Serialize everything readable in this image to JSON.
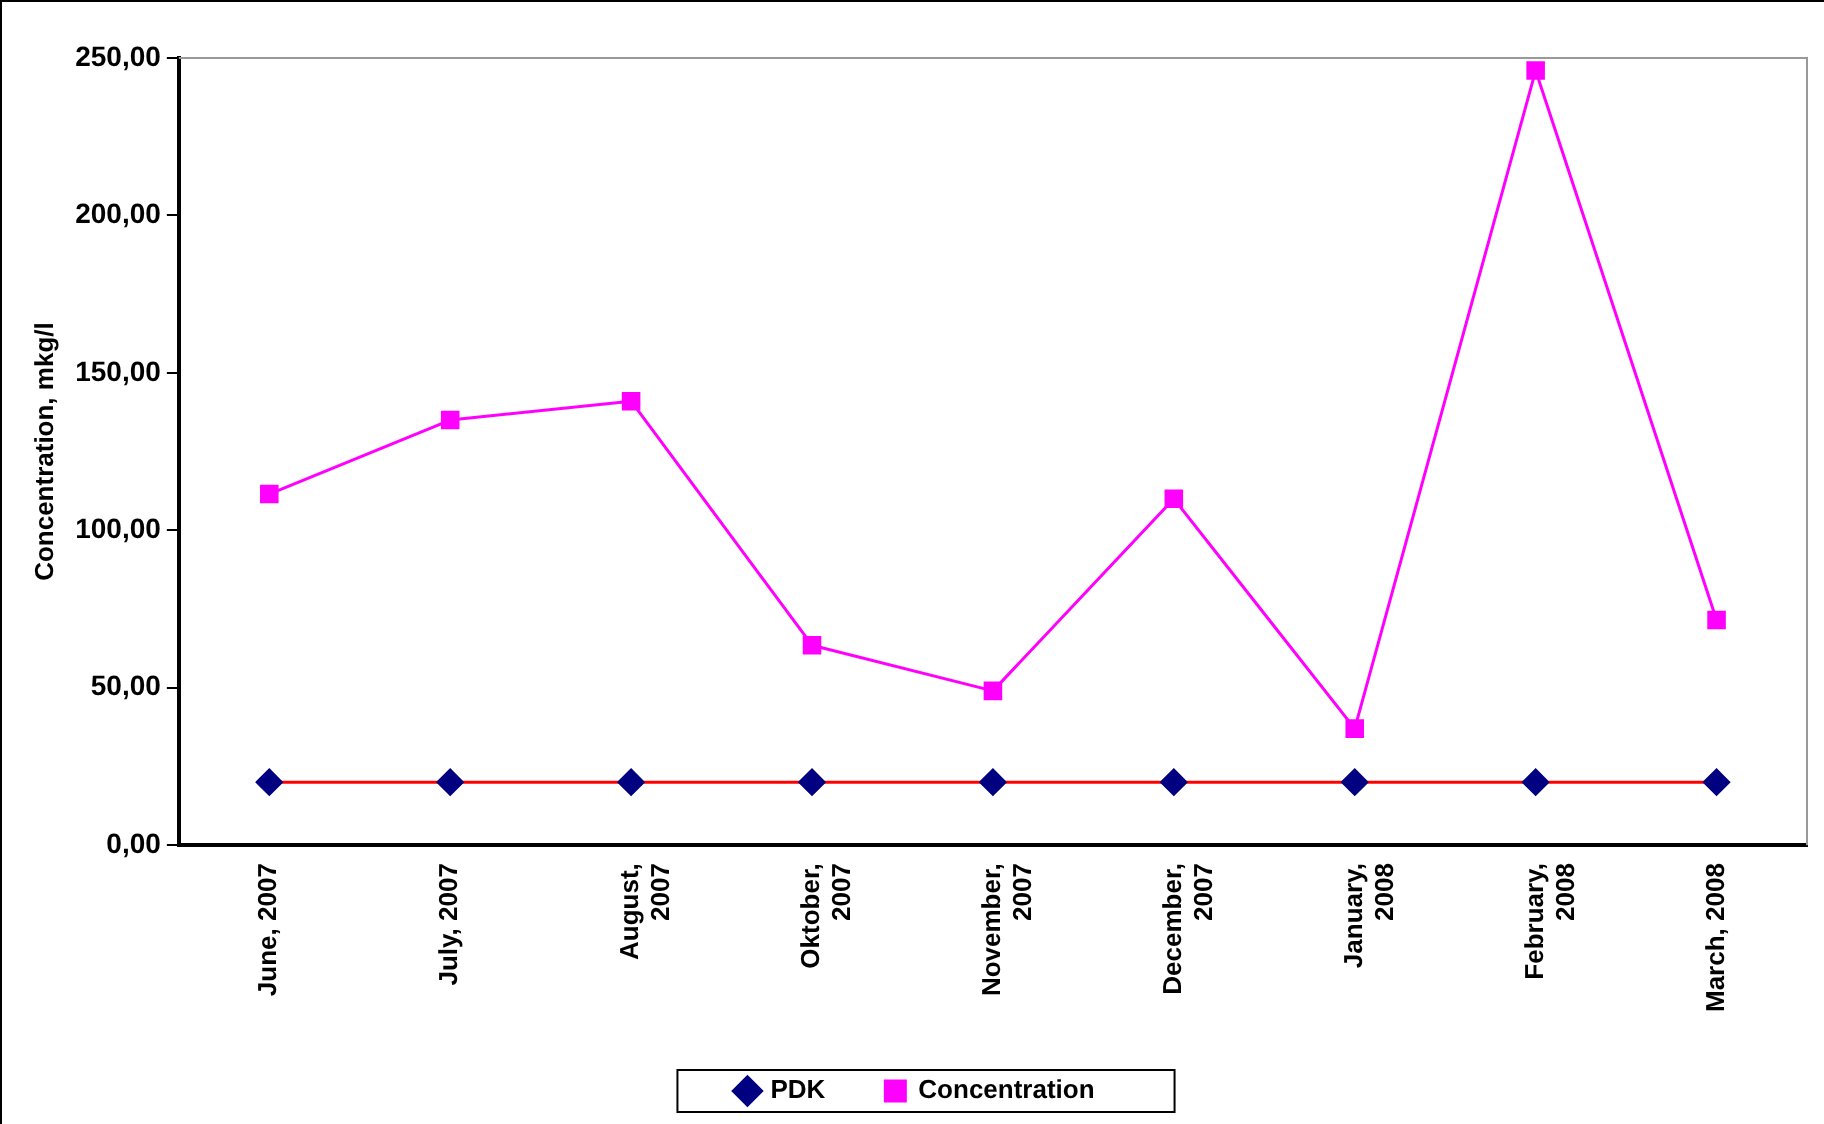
{
  "chart_data": {
    "type": "line",
    "ylabel": "Concentration, mkg/l",
    "categories": [
      "June, 2007",
      "July, 2007",
      "August, 2007",
      "Oktober, 2007",
      "November, 2007",
      "December, 2007",
      "January, 2008",
      "February, 2008",
      "March, 2008"
    ],
    "series": [
      {
        "name": "PDK",
        "color": "#000080",
        "marker": "diamond",
        "values": [
          20,
          20,
          20,
          20,
          20,
          20,
          20,
          20,
          20
        ]
      },
      {
        "name": "Concentration",
        "color": "#ff00ff",
        "marker": "square",
        "values": [
          111.5,
          135,
          141,
          63.5,
          49,
          110,
          37,
          246,
          71.5
        ]
      }
    ],
    "ylim": [
      0,
      250
    ],
    "yticks": [
      {
        "value": 0,
        "label": "0,00"
      },
      {
        "value": 50,
        "label": "50,00"
      },
      {
        "value": 100,
        "label": "100,00"
      },
      {
        "value": 150,
        "label": "150,00"
      },
      {
        "value": 200,
        "label": "200,00"
      },
      {
        "value": 250,
        "label": "250,00"
      }
    ],
    "grid": false,
    "legend": "bottom"
  }
}
